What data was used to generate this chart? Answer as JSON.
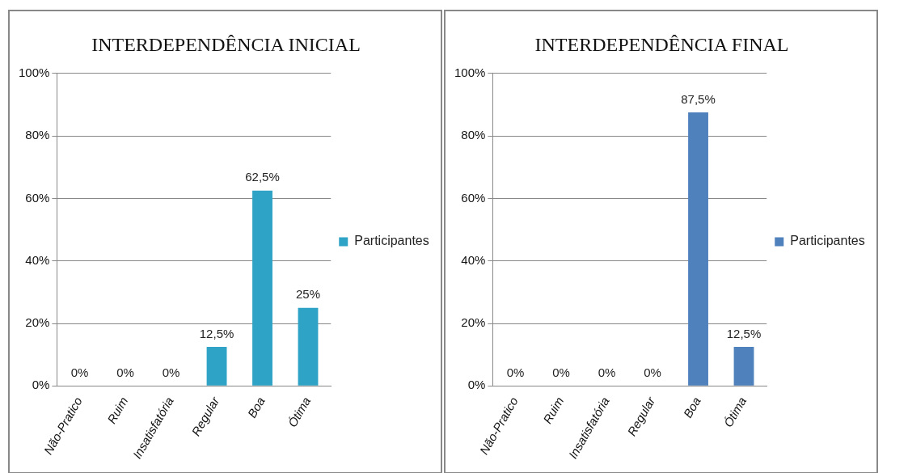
{
  "chart_data": [
    {
      "type": "bar",
      "title": "INTERDEPENDÊNCIA INICIAL",
      "categories": [
        "Não-Pratico",
        "Ruim",
        "Insatisfatória",
        "Regular",
        "Boa",
        "Ótima"
      ],
      "series": [
        {
          "name": "Participantes",
          "color": "#2ea3c6",
          "values": [
            0,
            0,
            0,
            12.5,
            62.5,
            25
          ],
          "value_labels": [
            "0%",
            "0%",
            "0%",
            "12,5%",
            "62,5%",
            "25%"
          ]
        }
      ],
      "ylim": [
        0,
        100
      ],
      "yticks": [
        {
          "value": 0,
          "label": "0%"
        },
        {
          "value": 20,
          "label": "20%"
        },
        {
          "value": 40,
          "label": "40%"
        },
        {
          "value": 60,
          "label": "60%"
        },
        {
          "value": 80,
          "label": "80%"
        },
        {
          "value": 100,
          "label": "100%"
        }
      ],
      "grid": "y",
      "legend": "right"
    },
    {
      "type": "bar",
      "title": "INTERDEPENDÊNCIA FINAL",
      "categories": [
        "Não-Pratico",
        "Ruim",
        "Insatisfatória",
        "Regular",
        "Boa",
        "Ótima"
      ],
      "series": [
        {
          "name": "Participantes",
          "color": "#4f81bd",
          "values": [
            0,
            0,
            0,
            0,
            87.5,
            12.5
          ],
          "value_labels": [
            "0%",
            "0%",
            "0%",
            "0%",
            "87,5%",
            "12,5%"
          ]
        }
      ],
      "ylim": [
        0,
        100
      ],
      "yticks": [
        {
          "value": 0,
          "label": "0%"
        },
        {
          "value": 20,
          "label": "20%"
        },
        {
          "value": 40,
          "label": "40%"
        },
        {
          "value": 60,
          "label": "60%"
        },
        {
          "value": 80,
          "label": "80%"
        },
        {
          "value": 100,
          "label": "100%"
        }
      ],
      "grid": "y",
      "legend": "right"
    }
  ]
}
